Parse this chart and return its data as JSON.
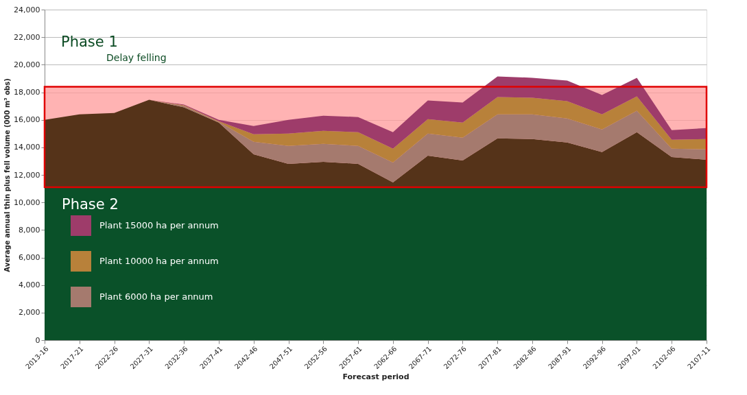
{
  "chart_data": {
    "type": "area",
    "stacked": true,
    "xlabel": "Forecast period",
    "ylabel": "Average annual thin plus fell volume (000 m³ obs)",
    "categories": [
      "2013-16",
      "2017-21",
      "2022-26",
      "2027-31",
      "2032-36",
      "2037-41",
      "2042-46",
      "2047-51",
      "2052-56",
      "2057-61",
      "2062-66",
      "2067-71",
      "2072-76",
      "2077-81",
      "2082-86",
      "2087-91",
      "2092-96",
      "2097-01",
      "2102-06",
      "2107-11"
    ],
    "series": [
      {
        "color": "#553319",
        "values": [
          16000,
          16400,
          16500,
          17450,
          16900,
          15800,
          13500,
          12800,
          12950,
          12800,
          11450,
          13400,
          13050,
          14650,
          14600,
          14350,
          13650,
          15100,
          13300,
          13100
        ]
      },
      {
        "name": "Plant 6000  ha per annum",
        "color": "#a57a6e",
        "values": [
          0,
          0,
          0,
          0,
          100,
          50,
          900,
          1300,
          1300,
          1300,
          1450,
          1600,
          1650,
          1750,
          1800,
          1750,
          1650,
          1550,
          600,
          750
        ]
      },
      {
        "name": "Plant 10000 ha per annum",
        "color": "#b8813a",
        "values": [
          0,
          0,
          0,
          0,
          50,
          50,
          550,
          900,
          950,
          1000,
          1000,
          1050,
          1100,
          1250,
          1200,
          1250,
          1100,
          1050,
          650,
          750
        ]
      },
      {
        "name": "Plant 15000 ha per annum",
        "color": "#9e3c6a",
        "values": [
          0,
          0,
          0,
          0,
          50,
          100,
          600,
          1000,
          1100,
          1100,
          1200,
          1350,
          1450,
          1500,
          1450,
          1500,
          1400,
          1350,
          700,
          800
        ]
      }
    ],
    "ylim": [
      0,
      24000
    ],
    "yticks": [
      0,
      {
        "value": 2000,
        "label": "2,000"
      },
      {
        "value": 4000,
        "label": "4,000"
      },
      {
        "value": 6000,
        "label": "6,000"
      },
      {
        "value": 8000,
        "label": "8,000"
      },
      {
        "value": 10000,
        "label": "10,000"
      },
      {
        "value": 12000,
        "label": "12,000"
      },
      {
        "value": 14000,
        "label": "14,000"
      },
      {
        "value": 16000,
        "label": "16,000"
      },
      {
        "value": 18000,
        "label": "18,000"
      },
      {
        "value": 20000,
        "label": "20,000"
      },
      {
        "value": 22000,
        "label": "22,000"
      },
      {
        "value": 24000,
        "label": "24,000"
      }
    ],
    "grid": "y",
    "legend": "bottom left",
    "bands": [
      {
        "axis": "y",
        "from": 0,
        "to": 11100,
        "label": "Phase 2",
        "color": "#0a5129"
      },
      {
        "axis": "y",
        "from": 11100,
        "to": 18400,
        "label": "Phase 1",
        "color": "#ff9a9a"
      }
    ],
    "annotations": [
      "Delay felling"
    ]
  }
}
